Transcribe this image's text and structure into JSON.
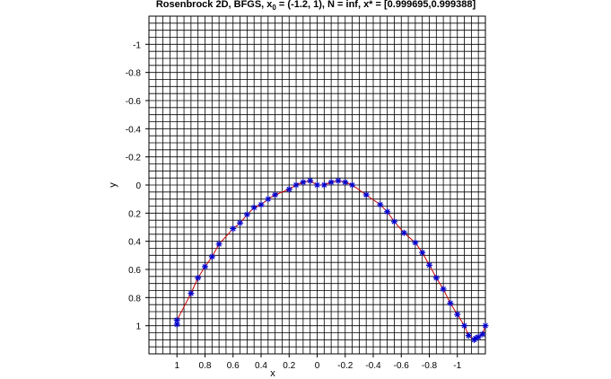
{
  "chart_data": {
    "type": "line",
    "title": {
      "prefix": "Rosenbrock 2D, BFGS, x",
      "sub": "0",
      "suffix": " = (-1.2, 1), N = inf, x* = [0.999695,0.999388]"
    },
    "xlabel": "x",
    "ylabel": "y",
    "xlim": [
      1.2,
      -1.2
    ],
    "ylim": [
      -1.2,
      1.2
    ],
    "x_reversed": true,
    "y_reversed": true,
    "grid": true,
    "xticks": [
      1,
      0.8,
      0.6,
      0.4,
      0.2,
      0,
      -0.2,
      -0.4,
      -0.6,
      -0.8,
      -1
    ],
    "xtick_labels": [
      "1",
      "0.8",
      "0.6",
      "0.4",
      "0.2",
      "0",
      "-0.2",
      "-0.4",
      "-0.6",
      "-0.8",
      "-1"
    ],
    "yticks": [
      -1,
      -0.8,
      -0.6,
      -0.4,
      -0.2,
      0,
      0.2,
      0.4,
      0.6,
      0.8,
      1
    ],
    "ytick_labels": [
      "-1",
      "-0.8",
      "-0.6",
      "-0.4",
      "-0.2",
      "0",
      "0.2",
      "0.4",
      "0.6",
      "0.8",
      "1"
    ],
    "series": [
      {
        "line_color": "#cc0000",
        "marker_color": "#0000cc",
        "marker": "asterisk",
        "x": [
          -1.2,
          -1.18,
          -1.15,
          -1.13,
          -1.12,
          -1.08,
          -1.05,
          -1.0,
          -0.95,
          -0.9,
          -0.85,
          -0.8,
          -0.75,
          -0.7,
          -0.62,
          -0.55,
          -0.5,
          -0.45,
          -0.35,
          -0.25,
          -0.2,
          -0.15,
          -0.1,
          -0.05,
          0.0,
          0.05,
          0.1,
          0.15,
          0.2,
          0.3,
          0.35,
          0.4,
          0.45,
          0.5,
          0.55,
          0.6,
          0.7,
          0.75,
          0.8,
          0.85,
          0.9,
          1.0,
          0.9999
        ],
        "y": [
          1.0,
          1.06,
          1.08,
          1.09,
          1.1,
          1.07,
          1.0,
          0.92,
          0.84,
          0.74,
          0.66,
          0.57,
          0.48,
          0.41,
          0.34,
          0.26,
          0.19,
          0.14,
          0.07,
          0.0,
          -0.02,
          -0.03,
          -0.02,
          0.0,
          0.0,
          -0.03,
          -0.02,
          0.0,
          0.03,
          0.07,
          0.1,
          0.14,
          0.16,
          0.21,
          0.27,
          0.31,
          0.42,
          0.51,
          0.58,
          0.66,
          0.77,
          0.96,
          0.99
        ]
      }
    ]
  }
}
